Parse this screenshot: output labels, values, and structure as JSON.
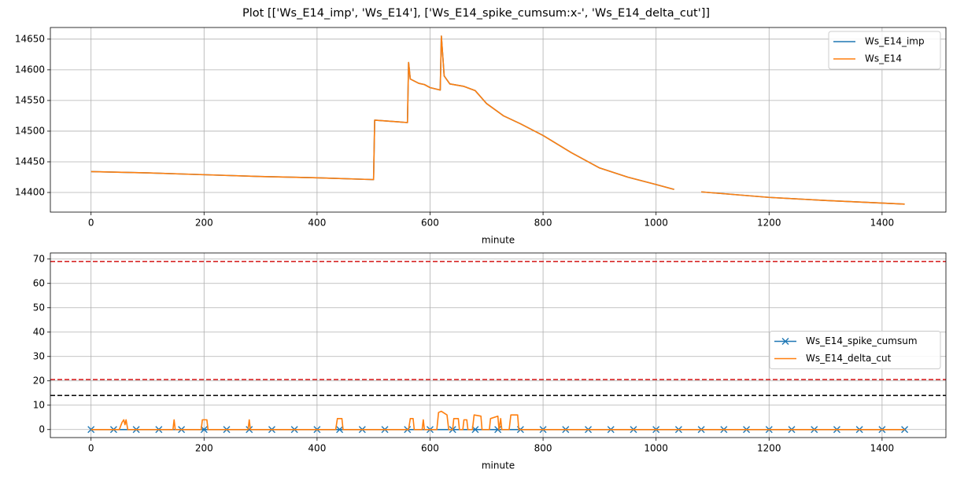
{
  "title": "Plot [['Ws_E14_imp', 'Ws_E14'], ['Ws_E14_spike_cumsum:x-', 'Ws_E14_delta_cut']]",
  "chart_data": [
    {
      "type": "line",
      "xlabel": "minute",
      "grid": true,
      "legend": "upper right",
      "xlim": [
        -72,
        1513
      ],
      "xticks": [
        0,
        200,
        400,
        600,
        800,
        1000,
        1200,
        1400
      ],
      "ylim": [
        14368,
        14669
      ],
      "yticks": [
        14400,
        14450,
        14500,
        14550,
        14600,
        14650
      ],
      "x": [
        0,
        100,
        200,
        300,
        400,
        500,
        502,
        560,
        562,
        565,
        580,
        590,
        600,
        618,
        620,
        625,
        635,
        660,
        680,
        700,
        730,
        760,
        800,
        850,
        900,
        950,
        1000,
        1032,
        1055,
        1080,
        1200,
        1300,
        1440
      ],
      "series": [
        {
          "name": "Ws_E14_imp",
          "color": "#1f77b4",
          "values": [
            14434,
            14432,
            14429,
            14426,
            14424,
            14421,
            14518,
            14514,
            14612,
            14585,
            14578,
            14576,
            14571,
            14567,
            14655,
            14590,
            14577,
            14573,
            14566,
            14545,
            14525,
            14512,
            14493,
            14465,
            14440,
            14425,
            14413,
            14405,
            null,
            14401,
            14392,
            14387,
            14381
          ]
        },
        {
          "name": "Ws_E14",
          "color": "#ff7f0e",
          "values": [
            14434,
            14432,
            14429,
            14426,
            14424,
            14421,
            14518,
            14514,
            14612,
            14585,
            14578,
            14576,
            14571,
            14567,
            14655,
            14590,
            14577,
            14573,
            14566,
            14545,
            14525,
            14512,
            14493,
            14465,
            14440,
            14425,
            14413,
            14405,
            null,
            14401,
            14392,
            14387,
            14381
          ]
        }
      ]
    },
    {
      "type": "line",
      "xlabel": "minute",
      "grid": true,
      "legend": "center right",
      "xlim": [
        -72,
        1513
      ],
      "xticks": [
        0,
        200,
        400,
        600,
        800,
        1000,
        1200,
        1400
      ],
      "ylim": [
        -3.3,
        72.5
      ],
      "yticks": [
        0,
        10,
        20,
        30,
        40,
        50,
        60,
        70
      ],
      "hlines": [
        {
          "value": 69,
          "color": "#d62728"
        },
        {
          "value": 20.5,
          "color": "#d62728"
        },
        {
          "value": 14,
          "color": "#000000"
        }
      ],
      "series": [
        {
          "name": "Ws_E14_spike_cumsum",
          "color": "#1f77b4",
          "marker": "x",
          "x": [
            0,
            40,
            80,
            120,
            160,
            200,
            240,
            280,
            320,
            360,
            400,
            440,
            480,
            520,
            560,
            600,
            640,
            680,
            720,
            760,
            800,
            840,
            880,
            920,
            960,
            1000,
            1040,
            1080,
            1120,
            1160,
            1200,
            1240,
            1280,
            1320,
            1360,
            1400,
            1440
          ],
          "values": [
            0,
            0,
            0,
            0,
            0,
            0,
            0,
            0,
            0,
            0,
            0,
            0,
            0,
            0,
            0,
            0,
            0,
            0,
            0,
            0,
            0,
            0,
            0,
            0,
            0,
            0,
            0,
            0,
            0,
            0,
            0,
            0,
            0,
            0,
            0,
            0,
            0
          ]
        },
        {
          "name": "Ws_E14_delta_cut",
          "color": "#ff7f0e",
          "x": [
            0,
            50,
            55,
            58,
            60,
            62,
            65,
            145,
            147,
            149,
            195,
            197,
            205,
            207,
            278,
            280,
            282,
            433,
            436,
            444,
            446,
            562,
            565,
            570,
            572,
            586,
            588,
            590,
            612,
            615,
            620,
            630,
            633,
            640,
            642,
            650,
            652,
            658,
            660,
            665,
            667,
            675,
            678,
            690,
            692,
            705,
            707,
            720,
            722,
            725,
            727,
            740,
            743,
            755,
            757,
            800,
            1440
          ],
          "values": [
            0,
            0,
            3,
            4,
            2,
            4,
            0,
            0,
            4,
            0,
            0,
            4,
            4,
            0,
            0,
            4,
            0,
            0,
            4.5,
            4.5,
            0,
            0,
            4.5,
            4.5,
            0,
            0,
            4,
            0,
            0,
            7,
            7.5,
            6,
            0,
            0,
            4.5,
            4.5,
            0,
            0,
            4,
            4,
            0,
            0,
            6,
            5.5,
            0,
            0,
            4.5,
            5.5,
            0,
            4.5,
            0,
            0,
            6,
            6,
            0,
            0,
            0
          ]
        }
      ]
    }
  ]
}
